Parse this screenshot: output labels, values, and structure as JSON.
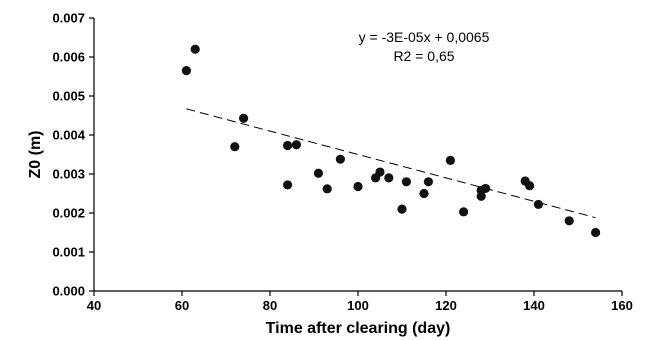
{
  "chart_data": {
    "type": "scatter",
    "xlabel": "Time after clearing (day)",
    "ylabel": "Z0 (m)",
    "xlim": [
      40,
      160
    ],
    "ylim": [
      0,
      0.007
    ],
    "x_ticks": [
      "40",
      "60",
      "80",
      "100",
      "120",
      "140",
      "160"
    ],
    "y_ticks": [
      "0.000",
      "0.001",
      "0.002",
      "0.003",
      "0.004",
      "0.005",
      "0.006",
      "0.007"
    ],
    "grid": false,
    "points": [
      {
        "x": 61,
        "y": 0.00565
      },
      {
        "x": 63,
        "y": 0.0062
      },
      {
        "x": 72,
        "y": 0.0037
      },
      {
        "x": 74,
        "y": 0.00443
      },
      {
        "x": 84,
        "y": 0.00373
      },
      {
        "x": 84,
        "y": 0.00272
      },
      {
        "x": 86,
        "y": 0.00375
      },
      {
        "x": 91,
        "y": 0.00302
      },
      {
        "x": 93,
        "y": 0.00262
      },
      {
        "x": 96,
        "y": 0.00338
      },
      {
        "x": 100,
        "y": 0.00268
      },
      {
        "x": 104,
        "y": 0.0029
      },
      {
        "x": 105,
        "y": 0.00305
      },
      {
        "x": 107,
        "y": 0.0029
      },
      {
        "x": 110,
        "y": 0.0021
      },
      {
        "x": 111,
        "y": 0.0028
      },
      {
        "x": 115,
        "y": 0.0025
      },
      {
        "x": 116,
        "y": 0.0028
      },
      {
        "x": 121,
        "y": 0.00335
      },
      {
        "x": 124,
        "y": 0.00203
      },
      {
        "x": 128,
        "y": 0.00243
      },
      {
        "x": 128,
        "y": 0.00258
      },
      {
        "x": 129,
        "y": 0.00263
      },
      {
        "x": 138,
        "y": 0.00282
      },
      {
        "x": 139,
        "y": 0.0027
      },
      {
        "x": 141,
        "y": 0.00222
      },
      {
        "x": 148,
        "y": 0.0018
      },
      {
        "x": 154,
        "y": 0.0015
      }
    ],
    "trendline": {
      "style": "dashed",
      "x_start": 61,
      "x_end": 154,
      "slope": -3e-05,
      "intercept": 0.0065
    },
    "annotations": {
      "equation": "y = -3E-05x + 0,0065",
      "r2": "R2 = 0,65"
    }
  }
}
